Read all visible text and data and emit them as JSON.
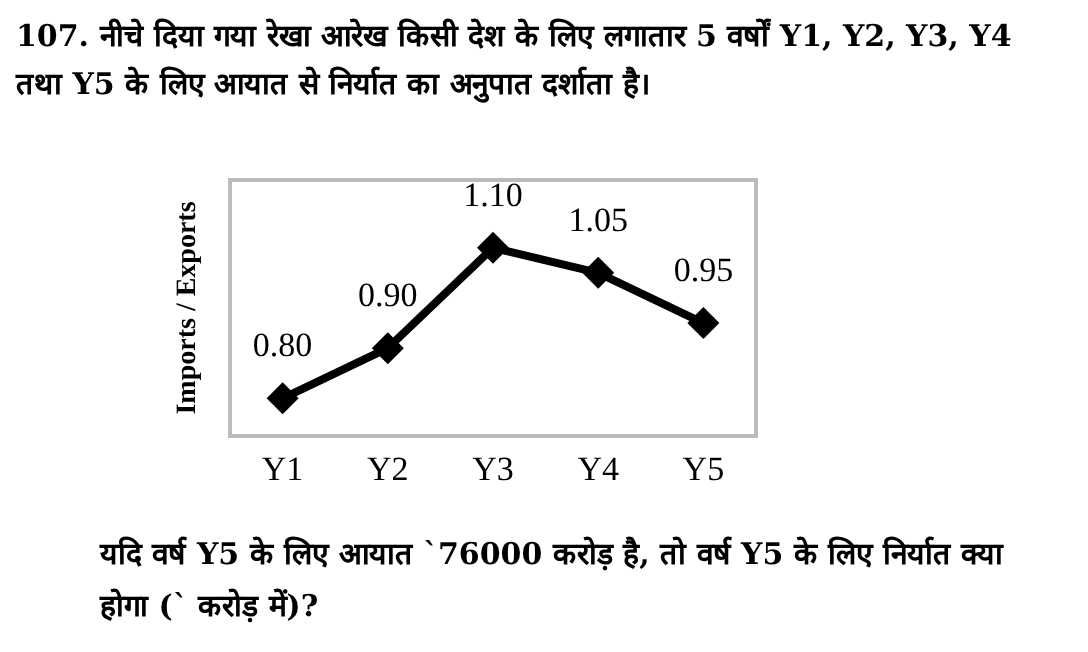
{
  "chart_data": {
    "type": "line",
    "title": "107. नीचे दिया गया रेखा आरेख किसी देश के लिए लगातार 5 वर्षों Y1, Y2, Y3, Y4 तथा Y5 के लिए आयात से निर्यात का अनुपात दर्शाता है।",
    "ylabel": "Imports / Exports",
    "categories": [
      "Y1",
      "Y2",
      "Y3",
      "Y4",
      "Y5"
    ],
    "series": [
      {
        "color": "#000000",
        "values": [
          0.8,
          0.9,
          1.1,
          1.05,
          0.95
        ],
        "value_labels": [
          "0.80",
          "0.90",
          "1.10",
          "1.05",
          "0.95"
        ]
      }
    ],
    "marker": "diamond",
    "line_style": "solid",
    "grid": false,
    "tick_labels": "x",
    "annotations": [
      "यदि वर्ष Y5 के लिए आयात `76000 करोड़ है, तो वर्ष Y5 के लिए निर्यात क्या होगा (` करोड़ में)?"
    ]
  }
}
